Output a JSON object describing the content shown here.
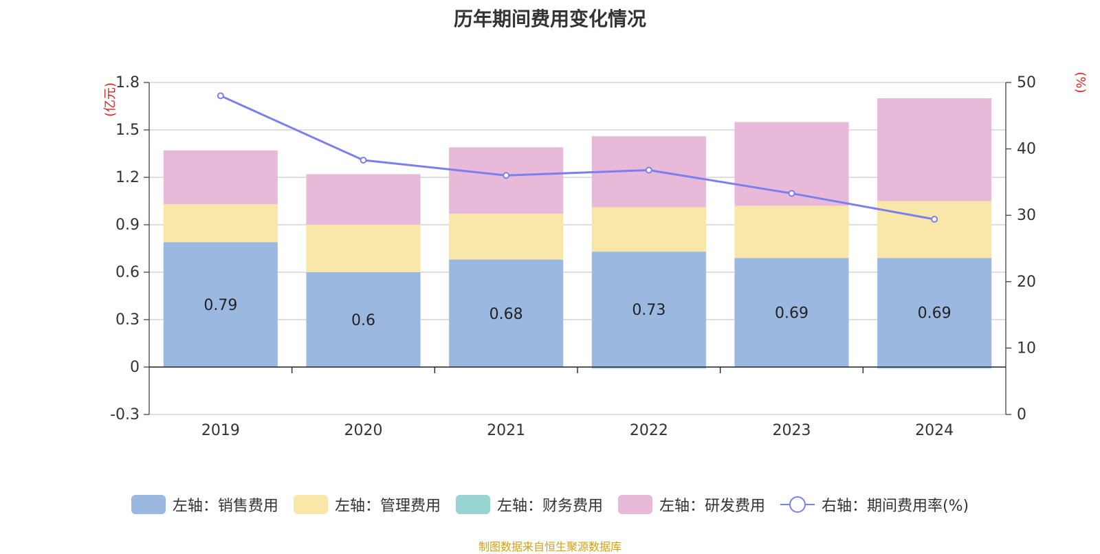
{
  "chart_data": {
    "type": "bar",
    "title": "历年期间费用变化情况",
    "categories": [
      "2019",
      "2020",
      "2021",
      "2022",
      "2023",
      "2024"
    ],
    "stacked": true,
    "left_axis": {
      "unit_label": "(亿元)",
      "ylim": [
        -0.3,
        1.8
      ],
      "ticks": [
        "1.8",
        "1.5",
        "1.2",
        "0.9",
        "0.6",
        "0.3",
        "0",
        "-0.3"
      ]
    },
    "right_axis": {
      "unit_label": "(%)",
      "ylim": [
        0,
        50
      ],
      "ticks": [
        "50",
        "40",
        "30",
        "20",
        "10",
        "0"
      ]
    },
    "series": [
      {
        "name": "左轴：销售费用",
        "axis": "left",
        "color": "#9bb8e1",
        "values": [
          0.79,
          0.6,
          0.68,
          0.73,
          0.69,
          0.69
        ],
        "labels": [
          "0.79",
          "0.6",
          "0.68",
          "0.73",
          "0.69",
          "0.69"
        ]
      },
      {
        "name": "左轴：管理费用",
        "axis": "left",
        "color": "#f8e7a8",
        "values": [
          0.24,
          0.3,
          0.29,
          0.28,
          0.33,
          0.36
        ]
      },
      {
        "name": "左轴：财务费用",
        "axis": "left",
        "color": "#98d4d4",
        "values": [
          0.0,
          0.0,
          0.0,
          -0.01,
          0.0,
          -0.01
        ]
      },
      {
        "name": "左轴：研发费用",
        "axis": "left",
        "color": "#e8b9d9",
        "values": [
          0.34,
          0.32,
          0.42,
          0.45,
          0.53,
          0.65
        ]
      },
      {
        "name": "右轴：期间费用率(%)",
        "axis": "right",
        "type": "line",
        "color": "#7b7fee",
        "values": [
          48.0,
          38.3,
          36.0,
          36.8,
          33.3,
          29.4
        ]
      }
    ],
    "grid": true,
    "legend_position": "bottom"
  },
  "source_note": "制图数据来自恒生聚源数据库"
}
